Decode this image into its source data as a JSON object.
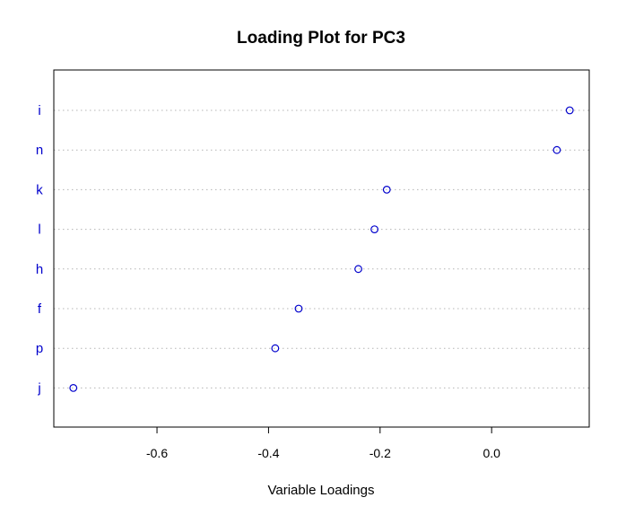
{
  "chart_data": {
    "type": "scatter",
    "title": "Loading Plot for PC3",
    "xlabel": "Variable Loadings",
    "ylabel": "",
    "xlim": [
      -0.785,
      0.175
    ],
    "xticks": [
      -0.6,
      -0.4,
      -0.2,
      0.0
    ],
    "xtick_labels": [
      "-0.6",
      "-0.4",
      "-0.2",
      "0.0"
    ],
    "categories": [
      "i",
      "n",
      "k",
      "l",
      "h",
      "f",
      "p",
      "j"
    ],
    "values": [
      0.14,
      0.117,
      -0.188,
      -0.21,
      -0.239,
      -0.346,
      -0.388,
      -0.75
    ],
    "grid": "dotted horizontal",
    "colors": {
      "point": "#0000cc",
      "category_label": "#0000cc",
      "grid": "#b4b4b4",
      "axis": "#000000"
    }
  }
}
